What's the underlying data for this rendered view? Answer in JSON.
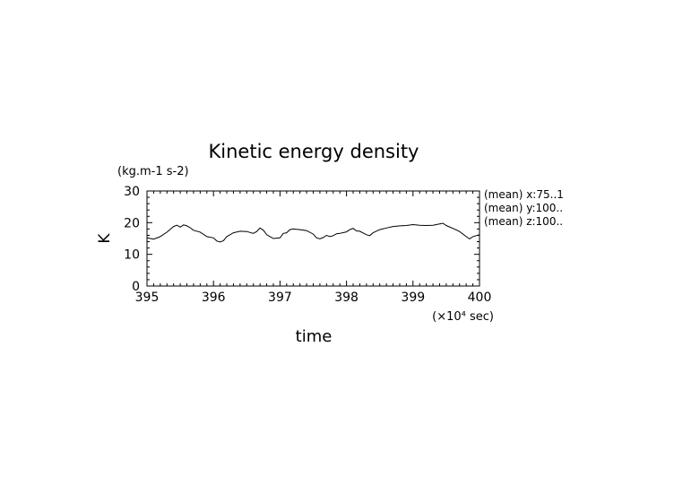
{
  "chart_data": {
    "type": "line",
    "title": "Kinetic energy density",
    "units": "(kg.m-1 s-2)",
    "xlabel": "time",
    "ylabel": "K",
    "x_scale_note": "(×10⁴ sec)",
    "xlim": [
      395,
      400
    ],
    "ylim": [
      0,
      30
    ],
    "x_ticks": [
      "395",
      "396",
      "397",
      "398",
      "399",
      "400"
    ],
    "y_ticks": [
      "0",
      "10",
      "20",
      "30"
    ],
    "grid": false,
    "annotations": [
      "(mean) x:75..1",
      "(mean) y:100..",
      "(mean) z:100.."
    ],
    "series": [
      {
        "x": [
          395.0,
          395.1,
          395.2,
          395.3,
          395.4,
          395.45,
          395.5,
          395.55,
          395.6,
          395.65,
          395.7,
          395.8,
          395.9,
          396.0,
          396.05,
          396.1,
          396.15,
          396.2,
          396.3,
          396.4,
          396.5,
          396.6,
          396.65,
          396.7,
          396.75,
          396.8,
          396.85,
          396.9,
          397.0,
          397.05,
          397.1,
          397.15,
          397.2,
          397.3,
          397.4,
          397.5,
          397.55,
          397.6,
          397.65,
          397.7,
          397.75,
          397.8,
          397.85,
          397.9,
          398.0,
          398.05,
          398.1,
          398.15,
          398.2,
          398.3,
          398.35,
          398.4,
          398.5,
          398.6,
          398.7,
          398.8,
          398.9,
          399.0,
          399.1,
          399.2,
          399.3,
          399.4,
          399.45,
          399.5,
          399.6,
          399.7,
          399.8,
          399.85,
          399.9,
          400.0
        ],
        "y": [
          15.2,
          14.8,
          15.6,
          17.0,
          18.8,
          19.2,
          18.6,
          19.3,
          19.0,
          18.4,
          17.6,
          17.0,
          15.6,
          15.2,
          14.2,
          13.9,
          14.3,
          15.6,
          16.8,
          17.3,
          17.2,
          16.6,
          17.2,
          18.3,
          17.6,
          16.2,
          15.6,
          15.0,
          15.2,
          16.6,
          16.8,
          17.8,
          18.0,
          17.8,
          17.5,
          16.4,
          15.2,
          14.9,
          15.3,
          16.0,
          15.6,
          15.9,
          16.5,
          16.6,
          17.1,
          17.8,
          18.2,
          17.4,
          17.3,
          16.2,
          15.9,
          16.8,
          17.8,
          18.3,
          18.8,
          19.0,
          19.1,
          19.4,
          19.2,
          19.1,
          19.2,
          19.6,
          19.8,
          19.1,
          18.2,
          17.2,
          15.6,
          14.9,
          15.6,
          16.2
        ]
      }
    ]
  }
}
